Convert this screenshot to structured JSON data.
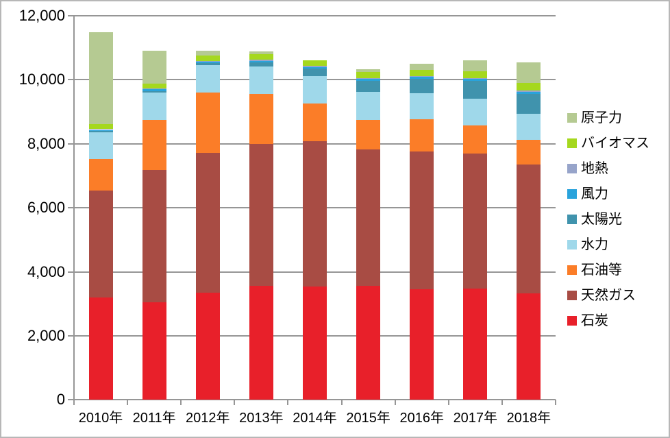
{
  "chart_data": {
    "type": "bar",
    "stacked": true,
    "title": "",
    "xlabel": "",
    "ylabel": "",
    "categories": [
      "2010年",
      "2011年",
      "2012年",
      "2013年",
      "2014年",
      "2015年",
      "2016年",
      "2017年",
      "2018年"
    ],
    "series": [
      {
        "name": "石炭",
        "color": "#e8202a",
        "values": [
          3199,
          3058,
          3340,
          3571,
          3537,
          3560,
          3452,
          3472,
          3324
        ]
      },
      {
        "name": "天然ガス",
        "color": "#a84c44",
        "values": [
          3339,
          4113,
          4380,
          4425,
          4552,
          4257,
          4318,
          4213,
          4028
        ]
      },
      {
        "name": "石油等",
        "color": "#fb7d28",
        "values": [
          983,
          1583,
          1885,
          1567,
          1161,
          937,
          1006,
          889,
          767
        ]
      },
      {
        "name": "水力",
        "color": "#9fd8ea",
        "values": [
          838,
          849,
          845,
          849,
          869,
          871,
          795,
          838,
          810
        ]
      },
      {
        "name": "太陽光",
        "color": "#4093ad",
        "values": [
          35,
          48,
          66,
          129,
          230,
          348,
          458,
          551,
          627
        ]
      },
      {
        "name": "風力",
        "color": "#29a3dc",
        "values": [
          40,
          47,
          48,
          52,
          52,
          56,
          62,
          65,
          75
        ]
      },
      {
        "name": "地熱",
        "color": "#97a4ca",
        "values": [
          26,
          27,
          26,
          26,
          26,
          26,
          25,
          25,
          25
        ]
      },
      {
        "name": "バイオマス",
        "color": "#a5d81e",
        "values": [
          152,
          159,
          168,
          178,
          182,
          185,
          197,
          219,
          236
        ]
      },
      {
        "name": "原子力",
        "color": "#b5ca92",
        "values": [
          2882,
          1018,
          159,
          93,
          0,
          94,
          181,
          329,
          649
        ]
      }
    ],
    "totals": [
      11494,
      10902,
      10917,
      10890,
      10609,
      10334,
      10494,
      10601,
      10541
    ],
    "ylim": [
      0,
      12000
    ],
    "ytick_step": 2000,
    "ytick_labels": [
      "0",
      "2,000",
      "4,000",
      "6,000",
      "8,000",
      "10,000",
      "12,000"
    ],
    "grid": true,
    "legend": {
      "position": "right",
      "items_top_to_bottom": [
        "原子力",
        "バイオマス",
        "地熱",
        "風力",
        "太陽光",
        "水力",
        "石油等",
        "天然ガス",
        "石炭"
      ]
    },
    "colors": {
      "grid": "#969696",
      "axis": "#969696",
      "text": "#000000",
      "background": "#ffffff",
      "border": "#b7b7b7"
    }
  }
}
